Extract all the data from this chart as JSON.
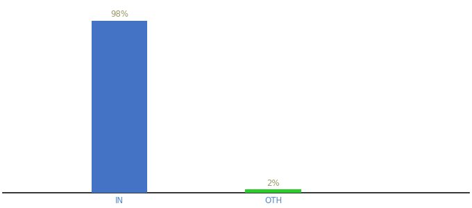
{
  "categories": [
    "IN",
    "OTH"
  ],
  "values": [
    98,
    2
  ],
  "bar_colors": [
    "#4472c4",
    "#29cc29"
  ],
  "label_texts": [
    "98%",
    "2%"
  ],
  "label_color": "#999966",
  "label_fontsize": 8.5,
  "xlabel_fontsize": 8.5,
  "xlabel_color": "#5588cc",
  "ylim": [
    0,
    108
  ],
  "bar_width": 0.12,
  "x_positions": [
    0.25,
    0.58
  ],
  "xlim": [
    0.0,
    1.0
  ],
  "background_color": "#ffffff",
  "axis_line_color": "#111111"
}
